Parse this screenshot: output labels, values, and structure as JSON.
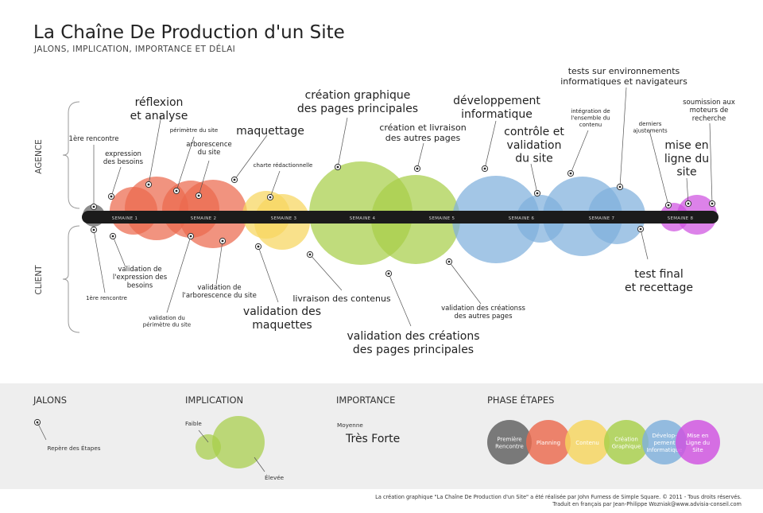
{
  "title": "La Chaîne De Production d'un Site",
  "subtitle": "JALONS, IMPLICATION, IMPORTANCE ET DÉLAI",
  "side_labels": {
    "top": "AGENCE",
    "bottom": "CLIENT"
  },
  "weeks": [
    "SEMAINE 1",
    "SEMAINE 2",
    "SEMAINE 3",
    "SEMAINE 4",
    "SEMAINE 5",
    "SEMAINE 6",
    "SEMAINE 7",
    "SEMAINE 8"
  ],
  "colors": {
    "phase1": "#5f5f5f",
    "phase2": "#ec6a4e",
    "phase3": "#f7d55e",
    "phase4": "#a8cf4a",
    "phase5": "#7fb0dc",
    "phase6": "#cf52e0",
    "bar": "#1b1b1b"
  },
  "milestones_top": [
    {
      "label": [
        "1ère rencontre"
      ],
      "size": "s"
    },
    {
      "label": [
        "expression",
        "des besoins"
      ],
      "size": "s"
    },
    {
      "label": [
        "réflexion",
        "et analyse"
      ],
      "size": "l"
    },
    {
      "label": [
        "périmètre du site"
      ],
      "size": "xs"
    },
    {
      "label": [
        "arborescence",
        "du site"
      ],
      "size": "s"
    },
    {
      "label": [
        "maquettage"
      ],
      "size": "l"
    },
    {
      "label": [
        "charte rédactionnelle"
      ],
      "size": "xs"
    },
    {
      "label": [
        "création graphique",
        "des pages principales"
      ],
      "size": "l"
    },
    {
      "label": [
        "création et livraison",
        "des autres pages"
      ],
      "size": "m"
    },
    {
      "label": [
        "développement",
        "informatique"
      ],
      "size": "l"
    },
    {
      "label": [
        "contrôle et",
        "validation",
        "du site"
      ],
      "size": "l"
    },
    {
      "label": [
        "intégration de",
        "l'ensemble du",
        "contenu"
      ],
      "size": "xs"
    },
    {
      "label": [
        "tests sur environnements",
        "informatiques et navigateurs"
      ],
      "size": "m"
    },
    {
      "label": [
        "derniers",
        "ajustements"
      ],
      "size": "xs"
    },
    {
      "label": [
        "mise en",
        "ligne du",
        "site"
      ],
      "size": "l"
    },
    {
      "label": [
        "soumission aux",
        "moteurs de",
        "recherche"
      ],
      "size": "s"
    }
  ],
  "milestones_bottom": [
    {
      "label": [
        "1ère rencontre"
      ],
      "size": "xs"
    },
    {
      "label": [
        "validation de",
        "l'expression des",
        "besoins"
      ],
      "size": "s"
    },
    {
      "label": [
        "validation du",
        "périmètre du site"
      ],
      "size": "xs"
    },
    {
      "label": [
        "validation de",
        "l'arborescence du site"
      ],
      "size": "s"
    },
    {
      "label": [
        "validation des",
        "maquettes"
      ],
      "size": "l"
    },
    {
      "label": [
        "livraison des contenus"
      ],
      "size": "m"
    },
    {
      "label": [
        "validation des créations",
        "des pages principales"
      ],
      "size": "l"
    },
    {
      "label": [
        "validation des créationss",
        "des autres pages"
      ],
      "size": "s"
    },
    {
      "label": [
        "test final",
        "et recettage"
      ],
      "size": "l"
    }
  ],
  "legend": {
    "jalons": {
      "heading": "JALONS",
      "item": "Repère des Étapes"
    },
    "implication": {
      "heading": "IMPLICATION",
      "low": "Faible",
      "high": "Élevée"
    },
    "importance": {
      "heading": "IMPORTANCE",
      "low": "Moyenne",
      "high": "Très Forte"
    },
    "phases": {
      "heading": "PHASE ÉTAPES",
      "items": [
        {
          "label": [
            "Première",
            "Rencontre"
          ],
          "color": "#5f5f5f"
        },
        {
          "label": [
            "Planning"
          ],
          "color": "#ec6a4e"
        },
        {
          "label": [
            "Contenu"
          ],
          "color": "#f7d55e"
        },
        {
          "label": [
            "Création",
            "Graphique"
          ],
          "color": "#a8cf4a"
        },
        {
          "label": [
            "Dévelop-",
            "pement",
            "Informatique"
          ],
          "color": "#7fb0dc"
        },
        {
          "label": [
            "Mise en",
            "Ligne du",
            "Site"
          ],
          "color": "#cf52e0"
        }
      ]
    }
  },
  "credits": [
    "La création graphique \"La Chaîne De Production d'un Site\" a été réalisée par John Furness de Simple Square. © 2011 - Tous droits réservés.",
    "Traduit en français par Jean-Philippe Wozniak@www.advisia-conseil.com"
  ]
}
